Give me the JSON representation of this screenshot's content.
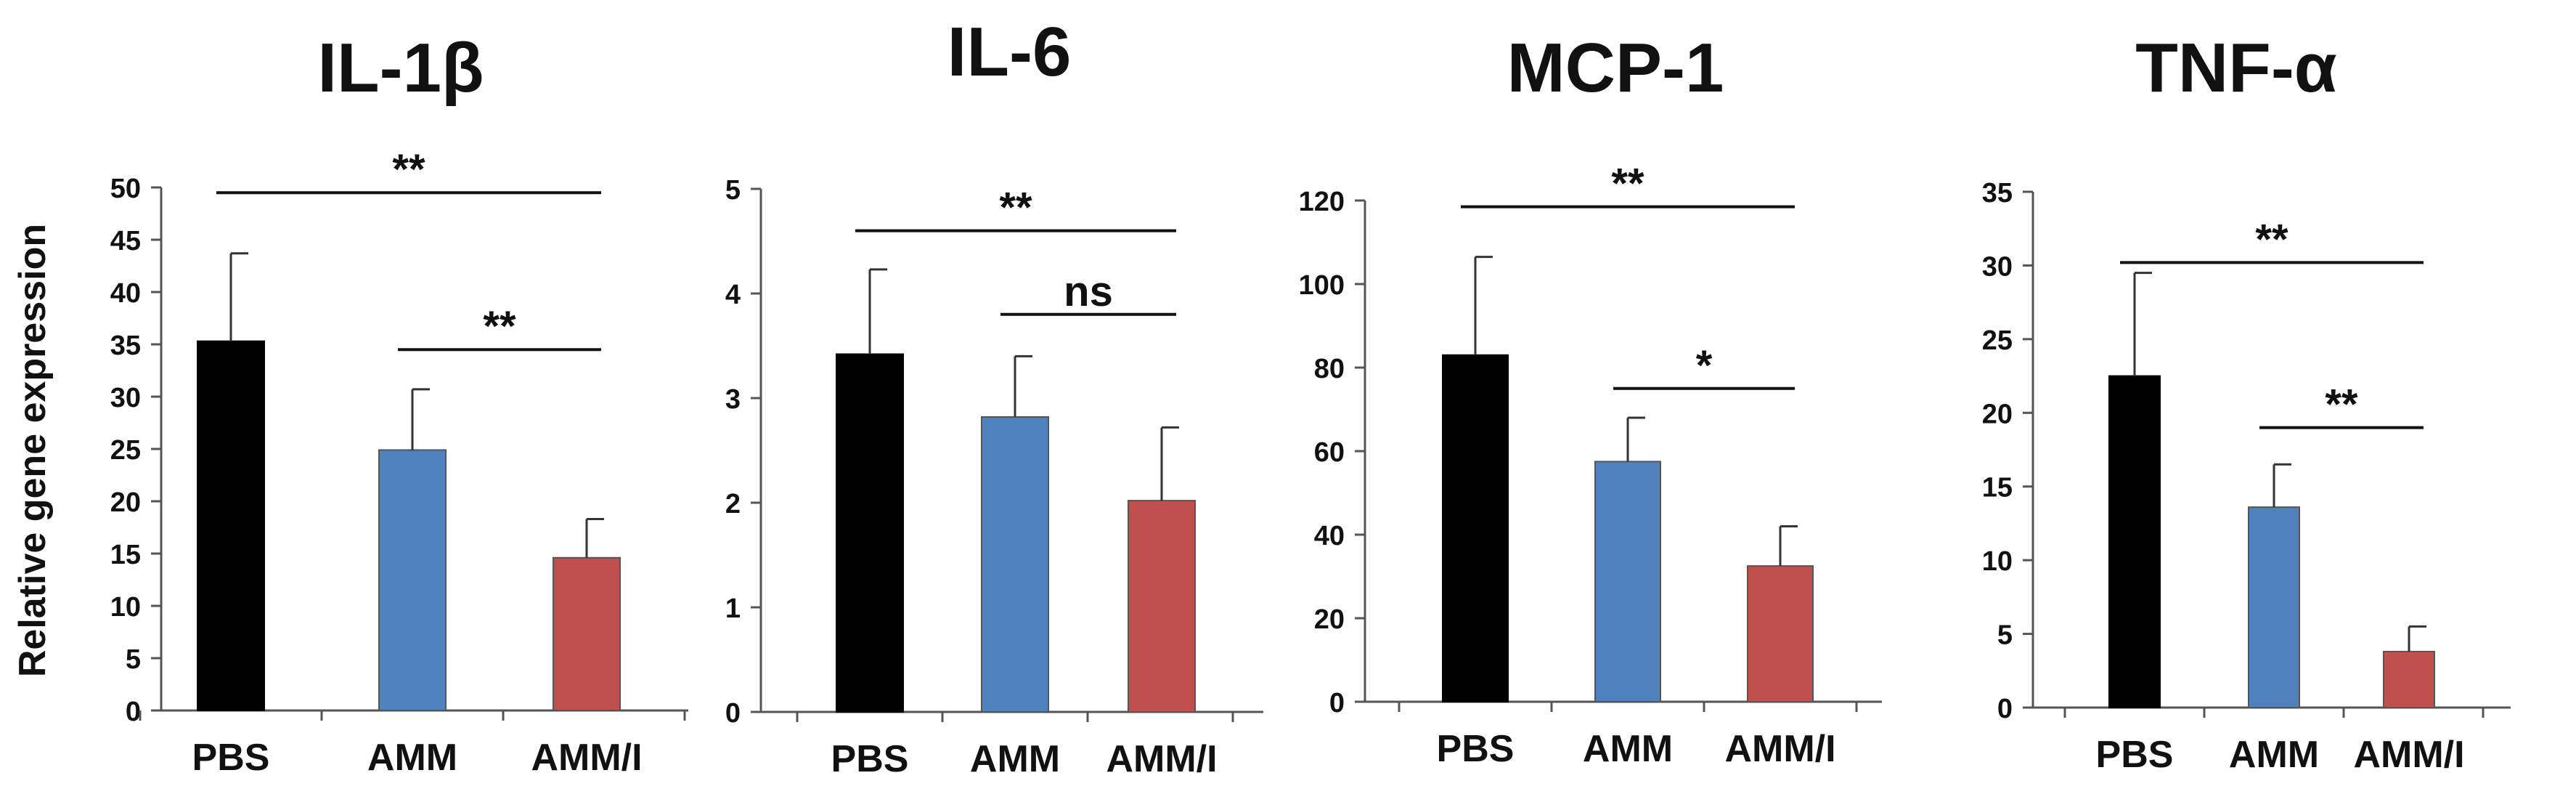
{
  "figure": {
    "ylabel": "Relative gene expression",
    "colors": {
      "PBS": "#000000",
      "AMM": "#4f81bd",
      "AMM/I": "#c0504d"
    }
  },
  "chart_data": [
    {
      "type": "bar",
      "title": "IL-1β",
      "categories": [
        "PBS",
        "AMM",
        "AMM/I"
      ],
      "values": [
        35.3,
        24.9,
        14.6
      ],
      "errors": [
        8.4,
        5.8,
        3.7
      ],
      "ylim": [
        0,
        50
      ],
      "yticks": [
        0,
        5,
        10,
        15,
        20,
        25,
        30,
        35,
        40,
        45,
        50
      ],
      "ylabel": "Relative gene expression",
      "significance": [
        {
          "from": 0,
          "to": 2,
          "label": "**",
          "y": 49.5
        },
        {
          "from": 1,
          "to": 2,
          "label": "**",
          "y": 34.5
        }
      ]
    },
    {
      "type": "bar",
      "title": "IL-6",
      "categories": [
        "PBS",
        "AMM",
        "AMM/I"
      ],
      "values": [
        3.42,
        2.82,
        2.02
      ],
      "errors": [
        0.81,
        0.58,
        0.7
      ],
      "ylim": [
        0,
        5
      ],
      "yticks": [
        0,
        1,
        2,
        3,
        4,
        5
      ],
      "ylabel": "",
      "significance": [
        {
          "from": 0,
          "to": 2,
          "label": "**",
          "y": 4.6
        },
        {
          "from": 1,
          "to": 2,
          "label": "ns",
          "y": 3.8
        }
      ]
    },
    {
      "type": "bar",
      "title": "MCP-1",
      "categories": [
        "PBS",
        "AMM",
        "AMM/I"
      ],
      "values": [
        83,
        57.5,
        32.5
      ],
      "errors": [
        23.5,
        10.5,
        9.5
      ],
      "ylim": [
        0,
        120
      ],
      "yticks": [
        0,
        20,
        40,
        60,
        80,
        100,
        120
      ],
      "ylabel": "",
      "significance": [
        {
          "from": 0,
          "to": 2,
          "label": "**",
          "y": 118.5
        },
        {
          "from": 1,
          "to": 2,
          "label": "*",
          "y": 75
        }
      ]
    },
    {
      "type": "bar",
      "title": "TNF-α",
      "categories": [
        "PBS",
        "AMM",
        "AMM/I"
      ],
      "values": [
        22.5,
        13.6,
        3.8
      ],
      "errors": [
        7,
        2.9,
        1.7
      ],
      "ylim": [
        0,
        35
      ],
      "yticks": [
        0,
        5,
        10,
        15,
        20,
        25,
        30,
        35
      ],
      "ylabel": "",
      "significance": [
        {
          "from": 0,
          "to": 2,
          "label": "**",
          "y": 30.2
        },
        {
          "from": 1,
          "to": 2,
          "label": "**",
          "y": 19
        }
      ]
    }
  ]
}
